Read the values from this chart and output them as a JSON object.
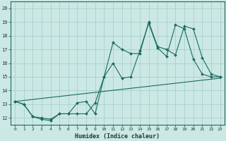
{
  "xlabel": "Humidex (Indice chaleur)",
  "xlim": [
    -0.5,
    23.5
  ],
  "ylim": [
    11.5,
    20.5
  ],
  "xticks": [
    0,
    1,
    2,
    3,
    4,
    5,
    6,
    7,
    8,
    9,
    10,
    11,
    12,
    13,
    14,
    15,
    16,
    17,
    18,
    19,
    20,
    21,
    22,
    23
  ],
  "yticks": [
    12,
    13,
    14,
    15,
    16,
    17,
    18,
    19,
    20
  ],
  "bg_color": "#cce8e4",
  "grid_color": "#9fccc6",
  "line_color": "#1a6b5e",
  "line1_x": [
    0,
    1,
    2,
    3,
    4,
    5,
    6,
    7,
    8,
    9,
    10,
    11,
    12,
    13,
    14,
    15,
    16,
    17,
    18,
    19,
    20,
    21,
    22,
    23
  ],
  "line1_y": [
    13.2,
    13.0,
    12.1,
    11.9,
    11.8,
    12.3,
    12.3,
    13.1,
    13.2,
    12.3,
    15.0,
    16.0,
    14.9,
    15.0,
    16.9,
    18.9,
    17.1,
    16.5,
    18.8,
    18.5,
    16.3,
    15.2,
    15.0,
    15.0
  ],
  "line2_x": [
    0,
    1,
    2,
    3,
    4,
    5,
    6,
    7,
    8,
    9,
    10,
    11,
    12,
    13,
    14,
    15,
    16,
    17,
    18,
    19,
    20,
    21,
    22,
    23
  ],
  "line2_y": [
    13.2,
    13.0,
    12.1,
    12.0,
    11.9,
    12.3,
    12.3,
    12.3,
    12.3,
    13.1,
    15.0,
    17.5,
    17.0,
    16.7,
    16.7,
    19.0,
    17.2,
    17.0,
    16.6,
    18.7,
    18.5,
    16.4,
    15.2,
    15.0
  ],
  "line3_x": [
    0,
    23
  ],
  "line3_y": [
    13.2,
    14.9
  ],
  "marker_size": 2.0,
  "line_width": 0.8
}
